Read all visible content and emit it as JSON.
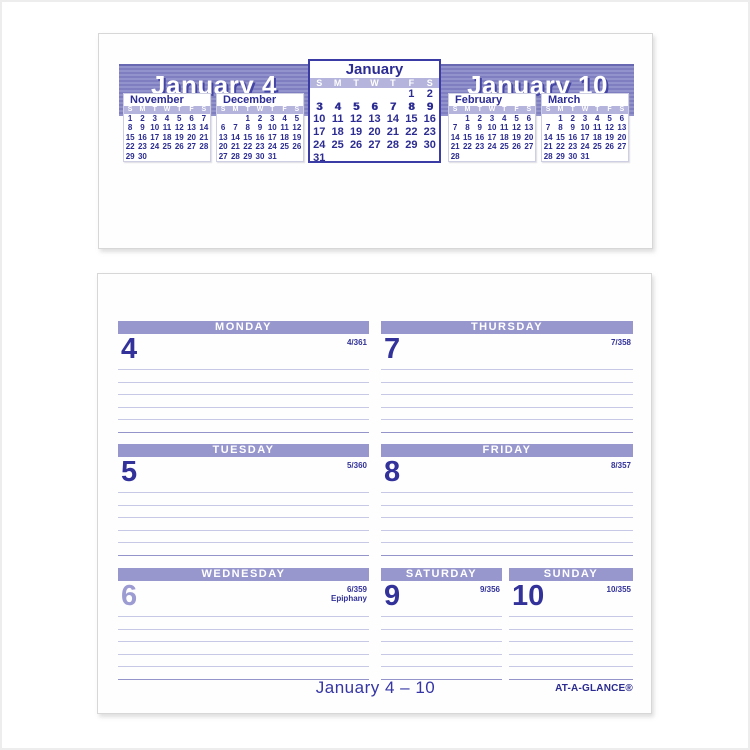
{
  "flip_card": {
    "left_week_title": "January 4",
    "right_week_title": "January 10",
    "weekday_letters": [
      "S",
      "M",
      "T",
      "W",
      "T",
      "F",
      "S"
    ],
    "center_month": {
      "name": "January",
      "bold_week_index": 1,
      "weeks": [
        [
          "",
          "",
          "",
          "",
          "",
          "1",
          "2"
        ],
        [
          "3",
          "4",
          "5",
          "6",
          "7",
          "8",
          "9"
        ],
        [
          "10",
          "11",
          "12",
          "13",
          "14",
          "15",
          "16"
        ],
        [
          "17",
          "18",
          "19",
          "20",
          "21",
          "22",
          "23"
        ],
        [
          "24",
          "25",
          "26",
          "27",
          "28",
          "29",
          "30"
        ],
        [
          "31",
          "",
          "",
          "",
          "",
          "",
          ""
        ]
      ]
    },
    "mini_months": [
      {
        "name": "November",
        "weeks": [
          [
            "1",
            "2",
            "3",
            "4",
            "5",
            "6",
            "7"
          ],
          [
            "8",
            "9",
            "10",
            "11",
            "12",
            "13",
            "14"
          ],
          [
            "15",
            "16",
            "17",
            "18",
            "19",
            "20",
            "21"
          ],
          [
            "22",
            "23",
            "24",
            "25",
            "26",
            "27",
            "28"
          ],
          [
            "29",
            "30",
            "",
            "",
            "",
            "",
            ""
          ]
        ]
      },
      {
        "name": "December",
        "weeks": [
          [
            "",
            "",
            "1",
            "2",
            "3",
            "4",
            "5"
          ],
          [
            "6",
            "7",
            "8",
            "9",
            "10",
            "11",
            "12"
          ],
          [
            "13",
            "14",
            "15",
            "16",
            "17",
            "18",
            "19"
          ],
          [
            "20",
            "21",
            "22",
            "23",
            "24",
            "25",
            "26"
          ],
          [
            "27",
            "28",
            "29",
            "30",
            "31",
            "",
            ""
          ]
        ]
      },
      {
        "name": "February",
        "weeks": [
          [
            "",
            "1",
            "2",
            "3",
            "4",
            "5",
            "6"
          ],
          [
            "7",
            "8",
            "9",
            "10",
            "11",
            "12",
            "13"
          ],
          [
            "14",
            "15",
            "16",
            "17",
            "18",
            "19",
            "20"
          ],
          [
            "21",
            "22",
            "23",
            "24",
            "25",
            "26",
            "27"
          ],
          [
            "28",
            "",
            "",
            "",
            "",
            "",
            ""
          ]
        ]
      },
      {
        "name": "March",
        "weeks": [
          [
            "",
            "1",
            "2",
            "3",
            "4",
            "5",
            "6"
          ],
          [
            "7",
            "8",
            "9",
            "10",
            "11",
            "12",
            "13"
          ],
          [
            "14",
            "15",
            "16",
            "17",
            "18",
            "19",
            "20"
          ],
          [
            "21",
            "22",
            "23",
            "24",
            "25",
            "26",
            "27"
          ],
          [
            "28",
            "29",
            "30",
            "31",
            "",
            "",
            ""
          ]
        ]
      }
    ]
  },
  "week_page": {
    "lines_per_day": "6",
    "days": [
      {
        "label": "MONDAY",
        "date": "4",
        "day_of_year": "4/361",
        "note": "",
        "muted": ""
      },
      {
        "label": "TUESDAY",
        "date": "5",
        "day_of_year": "5/360",
        "note": "",
        "muted": ""
      },
      {
        "label": "WEDNESDAY",
        "date": "6",
        "day_of_year": "6/359",
        "note": "Epiphany",
        "muted": "yes"
      },
      {
        "label": "THURSDAY",
        "date": "7",
        "day_of_year": "7/358",
        "note": "",
        "muted": ""
      },
      {
        "label": "FRIDAY",
        "date": "8",
        "day_of_year": "8/357",
        "note": "",
        "muted": ""
      },
      {
        "label": "SATURDAY",
        "date": "9",
        "day_of_year": "9/356",
        "note": "",
        "muted": ""
      },
      {
        "label": "SUNDAY",
        "date": "10",
        "day_of_year": "10/355",
        "note": "",
        "muted": ""
      }
    ],
    "footer_week_range": "January 4 – 10",
    "brand": "AT-A-GLANCE®"
  },
  "colors": {
    "ink_blue": "#32329a",
    "banner_purple": "#8585c4",
    "day_bar_purple": "#9797ce",
    "weekday_band_purple": "#b4b4dc",
    "rule_light": "#c7c7e6",
    "rule_dark": "#9494cb",
    "muted_number": "#9c9cd2"
  }
}
